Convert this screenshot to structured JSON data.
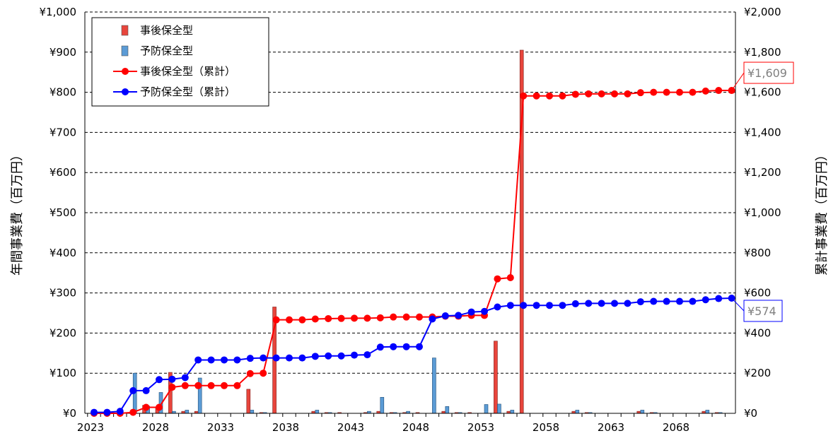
{
  "chart_data": {
    "type": "bar",
    "years": [
      2023,
      2024,
      2025,
      2026,
      2027,
      2028,
      2029,
      2030,
      2031,
      2032,
      2033,
      2034,
      2035,
      2036,
      2037,
      2038,
      2039,
      2040,
      2041,
      2042,
      2043,
      2044,
      2045,
      2046,
      2047,
      2048,
      2049,
      2050,
      2051,
      2052,
      2053,
      2054,
      2055,
      2056,
      2057,
      2058,
      2059,
      2060,
      2061,
      2062,
      2063,
      2064,
      2065,
      2066,
      2067,
      2068,
      2069,
      2070,
      2071,
      2072
    ],
    "x_tick_labels": [
      "2023",
      "2028",
      "2033",
      "2038",
      "2043",
      "2048",
      "2053",
      "2058",
      "2063",
      "2068"
    ],
    "ylabel": "年間事業費（百万円）",
    "y2label": "累計事業費（百万円）",
    "ylim": [
      0,
      1000
    ],
    "y2lim": [
      0,
      2000
    ],
    "y_ticks": [
      "¥0",
      "¥100",
      "¥200",
      "¥300",
      "¥400",
      "¥500",
      "¥600",
      "¥700",
      "¥800",
      "¥900",
      "¥1,000"
    ],
    "y2_ticks": [
      "¥0",
      "¥200",
      "¥400",
      "¥600",
      "¥800",
      "¥1,000",
      "¥1,200",
      "¥1,400",
      "¥1,600",
      "¥1,800",
      "¥2,000"
    ],
    "grid": true,
    "legend_position": "top-left",
    "series": [
      {
        "name": "事後保全型",
        "kind": "bar",
        "axis": "left",
        "color": "#e8453c",
        "values": [
          0,
          0,
          0,
          0,
          20,
          15,
          102,
          5,
          5,
          0,
          0,
          0,
          60,
          2,
          265,
          0,
          0,
          5,
          2,
          2,
          0,
          2,
          5,
          2,
          2,
          2,
          0,
          5,
          2,
          2,
          0,
          180,
          5,
          905,
          0,
          0,
          0,
          5,
          2,
          0,
          0,
          0,
          5,
          2,
          0,
          0,
          0,
          5,
          2,
          0
        ]
      },
      {
        "name": "予防保全型",
        "kind": "bar",
        "axis": "left",
        "color": "#5b9bd5",
        "values": [
          0,
          0,
          0,
          100,
          18,
          52,
          5,
          8,
          88,
          0,
          0,
          0,
          8,
          2,
          0,
          0,
          0,
          8,
          2,
          0,
          0,
          5,
          40,
          2,
          5,
          0,
          138,
          17,
          2,
          0,
          22,
          23,
          8,
          0,
          0,
          0,
          0,
          8,
          2,
          0,
          0,
          0,
          8,
          2,
          0,
          0,
          0,
          8,
          2,
          0
        ]
      },
      {
        "name": "事後保全型（累計）",
        "kind": "line",
        "axis": "right",
        "color": "#ff0000",
        "values": [
          0,
          0,
          0,
          5,
          30,
          30,
          130,
          138,
          138,
          138,
          138,
          138,
          198,
          200,
          466,
          466,
          466,
          470,
          472,
          473,
          474,
          474,
          476,
          480,
          480,
          480,
          480,
          484,
          484,
          488,
          488,
          670,
          676,
          1582,
          1582,
          1582,
          1582,
          1590,
          1592,
          1592,
          1592,
          1592,
          1598,
          1600,
          1600,
          1600,
          1600,
          1606,
          1609,
          1609
        ]
      },
      {
        "name": "予防保全型（累計）",
        "kind": "line",
        "axis": "right",
        "color": "#0000ff",
        "values": [
          5,
          5,
          10,
          113,
          113,
          168,
          170,
          178,
          266,
          266,
          266,
          266,
          274,
          276,
          276,
          276,
          276,
          284,
          286,
          286,
          290,
          292,
          330,
          332,
          332,
          332,
          470,
          486,
          488,
          505,
          508,
          530,
          538,
          538,
          538,
          538,
          538,
          546,
          548,
          548,
          548,
          548,
          556,
          558,
          558,
          558,
          558,
          566,
          572,
          574
        ]
      }
    ],
    "callouts": [
      {
        "series": "事後保全型（累計）",
        "text": "¥1,609",
        "color": "#ff0000"
      },
      {
        "series": "予防保全型（累計）",
        "text": "¥574",
        "color": "#0000ff"
      }
    ]
  }
}
